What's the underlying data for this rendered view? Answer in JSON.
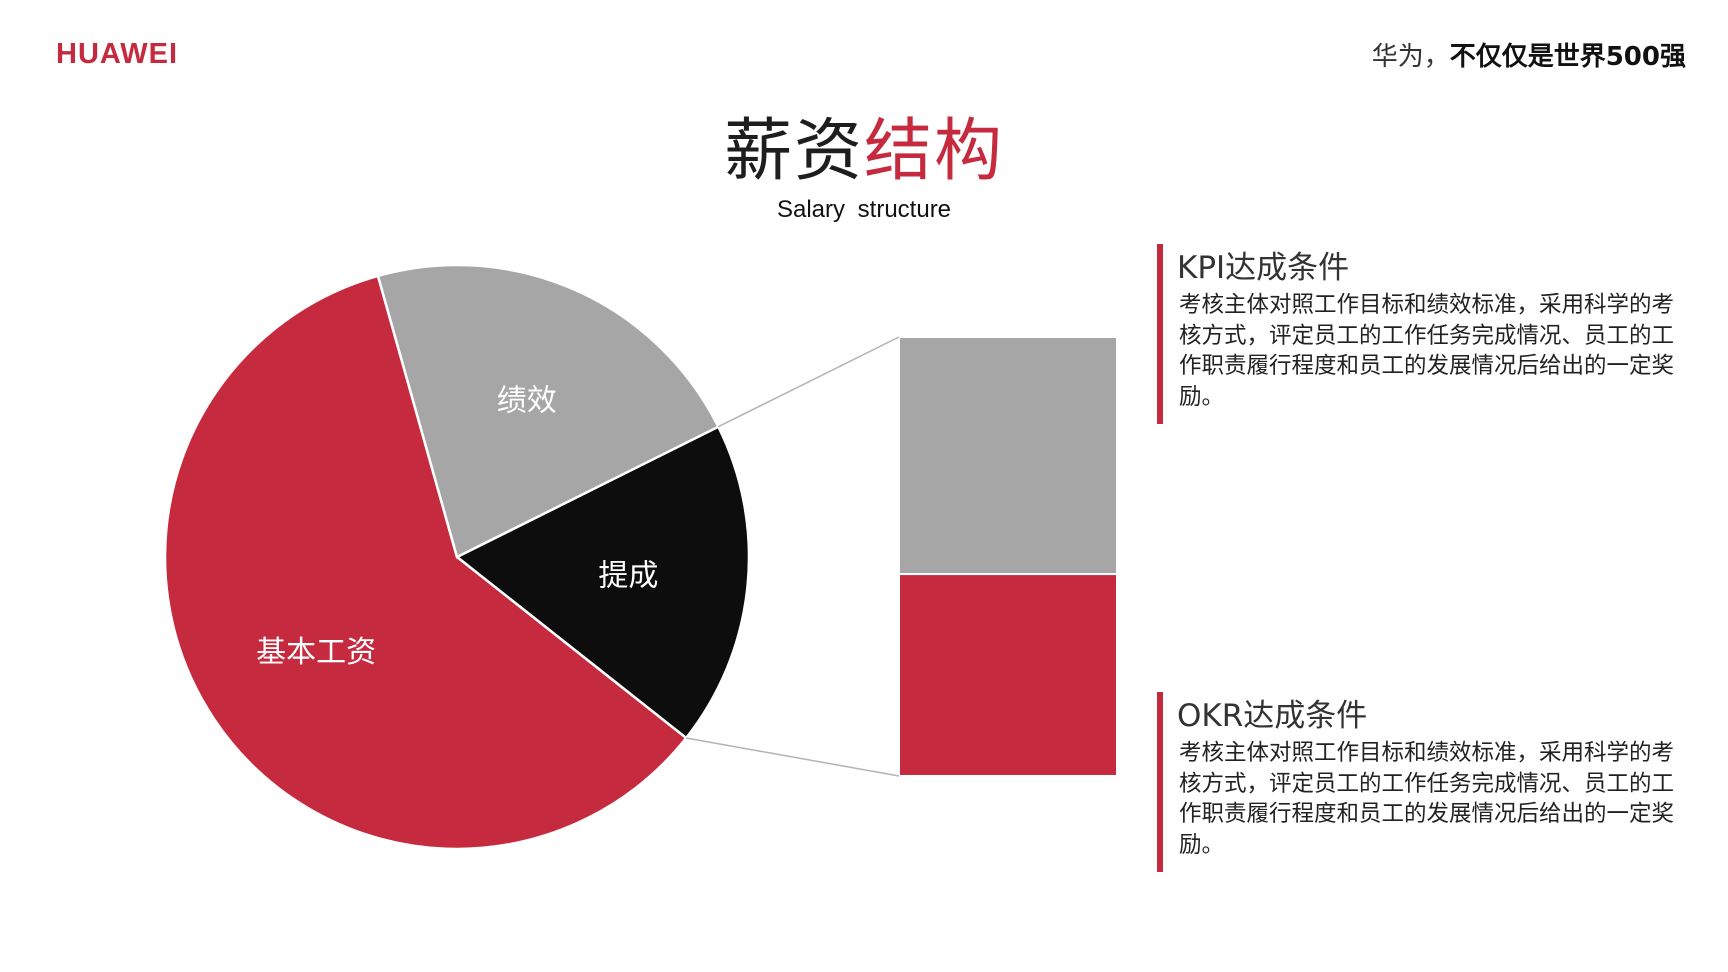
{
  "header": {
    "logo": "HUAWEI",
    "slogan_normal": "华为，",
    "slogan_bold": "不仅仅是世界500强"
  },
  "title": {
    "part_black": "薪资",
    "part_red": "结构",
    "subtitle": "Salary  structure"
  },
  "colors": {
    "red": "#c62a3e",
    "gray": "#a6a6a6",
    "black": "#0d0d0d",
    "accent": "#c62a3e"
  },
  "chart_data": {
    "type": "pie",
    "title": "",
    "slices": [
      {
        "label": "基本工资",
        "value": 60,
        "color": "#c62a3e"
      },
      {
        "label": "绩效",
        "value": 22,
        "color": "#a6a6a6"
      },
      {
        "label": "提成",
        "value": 18,
        "color": "#0d0d0d"
      }
    ],
    "breakout": {
      "source": "提成",
      "segments": [
        {
          "value": 54,
          "color": "#a6a6a6"
        },
        {
          "value": 46,
          "color": "#c62a3e"
        }
      ]
    }
  },
  "cards": [
    {
      "heading": "KPI达成条件",
      "body": "考核主体对照工作目标和绩效标准，采用科学的考核方式，评定员工的工作任务完成情况、员工的工作职责履行程度和员工的发展情况后给出的一定奖励。"
    },
    {
      "heading": "OKR达成条件",
      "body": "考核主体对照工作目标和绩效标准，采用科学的考核方式，评定员工的工作任务完成情况、员工的工作职责履行程度和员工的发展情况后给出的一定奖励。"
    }
  ]
}
